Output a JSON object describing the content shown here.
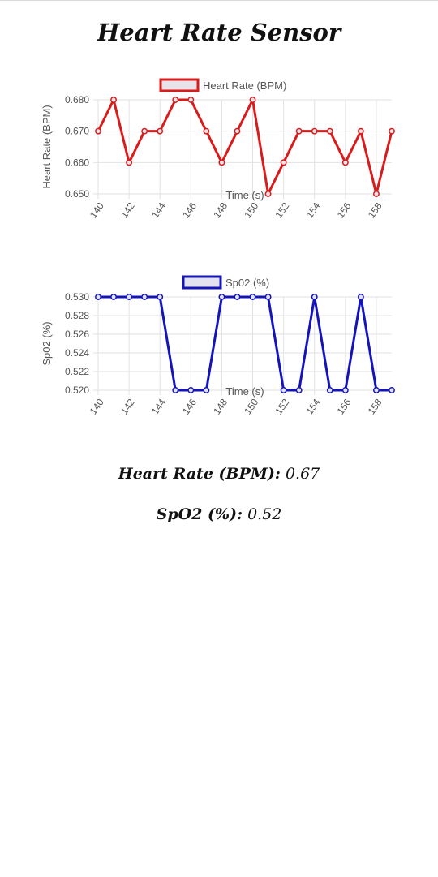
{
  "page": {
    "title": "Heart Rate Sensor"
  },
  "chart_data": [
    {
      "type": "line",
      "name": "heart-rate-chart",
      "xlabel": "Time (s)",
      "ylabel": "Heart Rate (BPM)",
      "legend": "Heart Rate (BPM)",
      "legend_placement": "top-center",
      "grid": true,
      "x": [
        140,
        141,
        142,
        143,
        144,
        145,
        146,
        147,
        148,
        149,
        150,
        151,
        152,
        153,
        154,
        155,
        156,
        157,
        158,
        159
      ],
      "xticks": [
        140,
        142,
        144,
        146,
        148,
        150,
        152,
        154,
        156,
        158
      ],
      "series": [
        {
          "name": "Heart Rate (BPM)",
          "values": [
            0.67,
            0.68,
            0.66,
            0.67,
            0.67,
            0.68,
            0.68,
            0.67,
            0.66,
            0.67,
            0.68,
            0.65,
            0.66,
            0.67,
            0.67,
            0.67,
            0.66,
            0.67,
            0.65,
            0.67
          ]
        }
      ],
      "ylim": [
        0.65,
        0.68
      ],
      "yticks": [
        0.65,
        0.66,
        0.67,
        0.68
      ],
      "ytick_labels": [
        "0.650",
        "0.660",
        "0.670",
        "0.680"
      ],
      "line_color": "#d81b1b",
      "fill_color": "#e8e3ea"
    },
    {
      "type": "line",
      "name": "spo2-chart",
      "xlabel": "Time (s)",
      "ylabel": "Sp02 (%)",
      "legend": "Sp02 (%)",
      "legend_placement": "top-center",
      "grid": true,
      "x": [
        140,
        141,
        142,
        143,
        144,
        145,
        146,
        147,
        148,
        149,
        150,
        151,
        152,
        153,
        154,
        155,
        156,
        157,
        158,
        159
      ],
      "xticks": [
        140,
        142,
        144,
        146,
        148,
        150,
        152,
        154,
        156,
        158
      ],
      "series": [
        {
          "name": "Sp02 (%)",
          "values": [
            0.53,
            0.53,
            0.53,
            0.53,
            0.53,
            0.52,
            0.52,
            0.52,
            0.53,
            0.53,
            0.53,
            0.53,
            0.52,
            0.52,
            0.53,
            0.52,
            0.52,
            0.53,
            0.52,
            0.52
          ]
        }
      ],
      "ylim": [
        0.52,
        0.53
      ],
      "yticks": [
        0.52,
        0.522,
        0.524,
        0.526,
        0.528,
        0.53
      ],
      "ytick_labels": [
        "0.520",
        "0.522",
        "0.524",
        "0.526",
        "0.528",
        "0.530"
      ],
      "line_color": "#1414b8",
      "fill_color": "#e3e3ef"
    }
  ],
  "readouts": {
    "heart_rate_label": "Heart Rate (BPM):",
    "heart_rate_value": "0.67",
    "spo2_label": "SpO2 (%):",
    "spo2_value": "0.52"
  }
}
